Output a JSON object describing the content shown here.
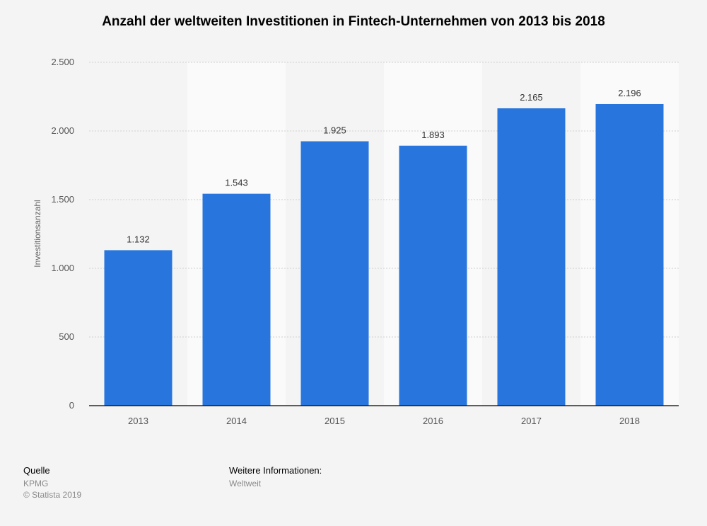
{
  "chart_data": {
    "type": "bar",
    "title": "Anzahl der weltweiten Investitionen in Fintech-Unternehmen von 2013 bis 2018",
    "xlabel": "",
    "ylabel": "Investitionsanzahl",
    "categories": [
      "2013",
      "2014",
      "2015",
      "2016",
      "2017",
      "2018"
    ],
    "values": [
      1132,
      1543,
      1925,
      1893,
      2165,
      2196
    ],
    "data_labels": [
      "1.132",
      "1.543",
      "1.925",
      "1.893",
      "2.165",
      "2.196"
    ],
    "ylim": [
      0,
      2500
    ],
    "yticks": [
      0,
      500,
      1000,
      1500,
      2000,
      2500
    ],
    "ytick_labels": [
      "0",
      "500",
      "1.000",
      "1.500",
      "2.000",
      "2.500"
    ],
    "bar_color": "#2876dd",
    "grid": true
  },
  "footer": {
    "source_heading": "Quelle",
    "source": "KPMG",
    "copyright": "© Statista 2019",
    "info_heading": "Weitere Informationen:",
    "info": "Weltweit"
  }
}
